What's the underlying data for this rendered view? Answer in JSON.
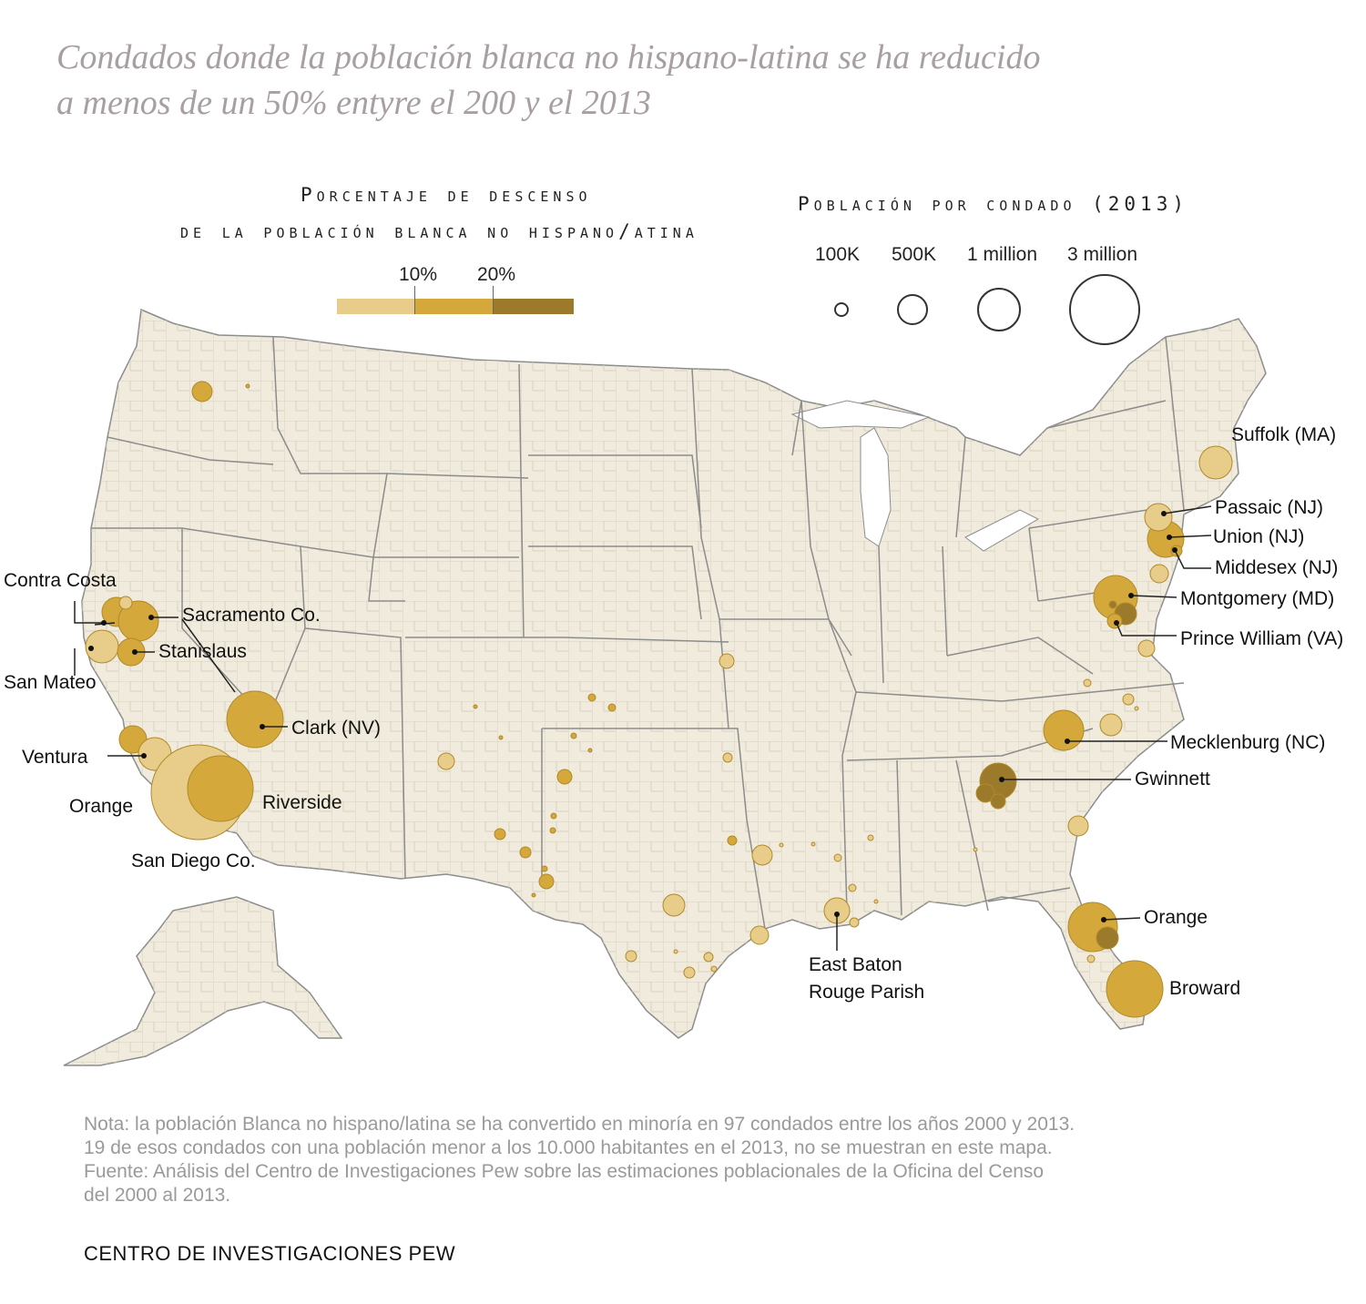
{
  "title": {
    "line1": "Condados donde la población blanca no hispano-latina se ha reducido",
    "line2": "a menos de un 50% entyre el 200 y el 2013"
  },
  "color_legend": {
    "title_line1": "Porcentaje de descenso",
    "title_line2": "de la población blanca no hispano/atina",
    "ticks": [
      "10%",
      "20%"
    ],
    "colors": [
      "#e8cc8a",
      "#d4a83a",
      "#9c7a2c"
    ]
  },
  "size_legend": {
    "title": "Población por condado (2013)",
    "labels": [
      "100K",
      "500K",
      "1 million",
      "3 million"
    ],
    "populations": [
      100000,
      500000,
      1000000,
      3000000
    ]
  },
  "map": {
    "land_color": "#f0ebdc",
    "border_color": "#8c8c8c",
    "bubble_colors": {
      "low": "#e8cc8a",
      "mid": "#d4a83a",
      "high": "#9c7a2c"
    }
  },
  "labels": {
    "suffolk": "Suffolk (MA)",
    "passaic": "Passaic (NJ)",
    "union": "Union (NJ)",
    "middesex": "Middesex (NJ)",
    "montgomery": "Montgomery (MD)",
    "prince_william": "Prince William (VA)",
    "mecklenburg": "Mecklenburg (NC)",
    "gwinnett": "Gwinnett",
    "orange_fl": "Orange",
    "broward": "Broward",
    "ebr_line1": "East Baton",
    "ebr_line2": "Rouge Parish",
    "contra_costa": "Contra Costa",
    "sacramento": "Sacramento Co.",
    "stanislaus": "Stanislaus",
    "san_mateo": "San Mateo",
    "clark": "Clark (NV)",
    "ventura": "Ventura",
    "orange_ca": "Orange",
    "riverside": "Riverside",
    "san_diego": "San Diego Co."
  },
  "note": {
    "line1": "Nota: la población Blanca no hispano/latina se ha convertido en minoría en 97 condados entre los años 2000 y 2013.",
    "line2": "19 de esos condados con una población menor a los 10.000 habitantes en el 2013, no se muestran en este mapa.",
    "line3": "Fuente: Análisis del Centro de Investigaciones Pew sobre las estimaciones poblacionales de la Oficina del Censo",
    "line4": "del 2000 al 2013."
  },
  "credit": "CENTRO DE INVESTIGACIONES PEW"
}
